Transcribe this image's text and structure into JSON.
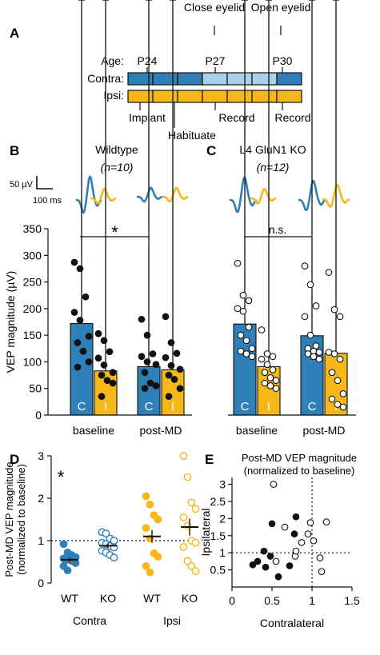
{
  "colors": {
    "contra": "#2f7fb8",
    "contra_light": "#a8d0e8",
    "ipsi": "#f6b818",
    "dot_dark": "#111111"
  },
  "panel_a": {
    "letter": "A",
    "age_label": "Age:",
    "contra_label": "Contra:",
    "ipsi_label": "Ipsi:",
    "ages": [
      "P24",
      "P27",
      "P30"
    ],
    "top_events": [
      "Close eyelid",
      "Open eyelid"
    ],
    "bottom_events": [
      "Implant",
      "Habituate",
      "Record",
      "Record"
    ],
    "n_days": 7,
    "md_days": [
      3,
      4,
      5
    ]
  },
  "panel_b": {
    "letter": "B",
    "title": "Wildtype",
    "n_text": "(n=10)"
  },
  "panel_c": {
    "letter": "C",
    "title": "L4 GluN1 KO",
    "n_text": "(n=12)"
  },
  "scale_bar": {
    "amp": "50 µV",
    "time": "100 ms"
  },
  "panel_d": {
    "letter": "D"
  },
  "panel_e": {
    "letter": "E",
    "title_line1": "Post-MD VEP magnitude",
    "title_line2": "(normalized to baseline)"
  },
  "chart_data": [
    {
      "type": "bar",
      "panel": "B",
      "ylabel": "VEP magnitude (µV)",
      "ylim": [
        0,
        350
      ],
      "yticks": [
        0,
        50,
        100,
        150,
        200,
        250,
        300,
        350
      ],
      "categories": [
        "baseline",
        "post-MD"
      ],
      "bar_labels": [
        "C",
        "I"
      ],
      "significance": "*",
      "series": [
        {
          "name": "C",
          "values": [
            172,
            91
          ],
          "sem": [
            18,
            9
          ]
        },
        {
          "name": "I",
          "values": [
            83,
            85
          ],
          "sem": [
            10,
            11
          ]
        }
      ],
      "points": [
        [
          287,
          275,
          222,
          193,
          178,
          148,
          136,
          120,
          100,
          90
        ],
        [
          153,
          140,
          119,
          107,
          94,
          80,
          75,
          65,
          60,
          35
        ],
        [
          180,
          150,
          115,
          110,
          100,
          95,
          80,
          60,
          55,
          50
        ],
        [
          185,
          136,
          116,
          108,
          93,
          86,
          75,
          67,
          50,
          35
        ]
      ]
    },
    {
      "type": "bar",
      "panel": "C",
      "ylim": [
        0,
        350
      ],
      "categories": [
        "baseline",
        "post-MD"
      ],
      "bar_labels": [
        "C",
        "I"
      ],
      "significance": "n.s.",
      "series": [
        {
          "name": "C",
          "values": [
            171,
            149
          ],
          "sem": [
            16,
            12
          ]
        },
        {
          "name": "I",
          "values": [
            91,
            116
          ],
          "sem": [
            11,
            16
          ]
        }
      ],
      "points": [
        [
          285,
          225,
          215,
          200,
          195,
          165,
          150,
          140,
          125,
          120,
          115,
          110
        ],
        [
          160,
          115,
          110,
          105,
          95,
          85,
          80,
          70,
          65,
          60,
          55,
          50
        ],
        [
          280,
          245,
          205,
          185,
          150,
          130,
          125,
          120,
          118,
          115,
          110,
          105
        ],
        [
          268,
          198,
          185,
          118,
          115,
          105,
          80,
          65,
          40,
          30,
          20,
          15
        ]
      ]
    },
    {
      "type": "scatter",
      "panel": "D",
      "ylabel_line1": "Post-MD VEP magnitude",
      "ylabel_line2": "(normalized to baseline)",
      "ylim": [
        0,
        3
      ],
      "yticks": [
        0,
        1,
        2,
        3
      ],
      "categories": [
        "WT",
        "KO",
        "WT",
        "KO"
      ],
      "groups": [
        "Contra",
        "Ipsi"
      ],
      "significance": "*",
      "reference_y": 1,
      "series": [
        {
          "name": "WT",
          "group": "Contra",
          "color": "contra",
          "filled": true,
          "mean": 0.55,
          "sem": 0.05,
          "values": [
            0.92,
            0.72,
            0.66,
            0.61,
            0.58,
            0.55,
            0.52,
            0.47,
            0.4,
            0.3
          ]
        },
        {
          "name": "KO",
          "group": "Contra",
          "color": "contra",
          "filled": false,
          "mean": 0.88,
          "sem": 0.05,
          "values": [
            1.2,
            1.17,
            1.05,
            1.0,
            0.95,
            0.92,
            0.87,
            0.84,
            0.76,
            0.72,
            0.66,
            0.6
          ]
        },
        {
          "name": "WT",
          "group": "Ipsi",
          "color": "ipsi",
          "filled": true,
          "mean": 1.1,
          "sem": 0.15,
          "values": [
            2.05,
            1.85,
            1.6,
            1.5,
            1.3,
            1.05,
            0.7,
            0.62,
            0.4,
            0.25
          ]
        },
        {
          "name": "KO",
          "group": "Ipsi",
          "color": "ipsi",
          "filled": false,
          "mean": 1.32,
          "sem": 0.2,
          "values": [
            3.0,
            2.5,
            1.9,
            1.75,
            1.55,
            1.35,
            1.0,
            0.95,
            0.85,
            0.52,
            0.4,
            0.28
          ]
        }
      ]
    },
    {
      "type": "scatter",
      "panel": "E",
      "xlabel": "Contralateral",
      "ylabel": "Ipsilateral",
      "xlim": [
        0,
        1.5
      ],
      "ylim": [
        0,
        3.2
      ],
      "xticks": [
        0,
        0.5,
        1,
        1.5
      ],
      "yticks": [
        0.5,
        1,
        1.5,
        2,
        2.5,
        3
      ],
      "reference_x": 1,
      "reference_y": 1,
      "series": [
        {
          "name": "WT",
          "filled": true,
          "points": [
            [
              0.26,
              0.65
            ],
            [
              0.32,
              0.75
            ],
            [
              0.4,
              1.05
            ],
            [
              0.42,
              0.58
            ],
            [
              0.48,
              0.9
            ],
            [
              0.5,
              1.85
            ],
            [
              0.58,
              0.3
            ],
            [
              0.72,
              0.62
            ],
            [
              0.78,
              1.55
            ],
            [
              0.8,
              2.05
            ]
          ]
        },
        {
          "name": "KO",
          "filled": false,
          "points": [
            [
              0.52,
              3.0
            ],
            [
              0.55,
              0.75
            ],
            [
              0.66,
              1.75
            ],
            [
              0.79,
              0.9
            ],
            [
              0.8,
              1.05
            ],
            [
              0.87,
              1.3
            ],
            [
              0.95,
              1.55
            ],
            [
              0.98,
              1.88
            ],
            [
              1.02,
              1.35
            ],
            [
              1.1,
              0.85
            ],
            [
              1.12,
              0.45
            ],
            [
              1.18,
              1.9
            ]
          ]
        }
      ]
    }
  ]
}
